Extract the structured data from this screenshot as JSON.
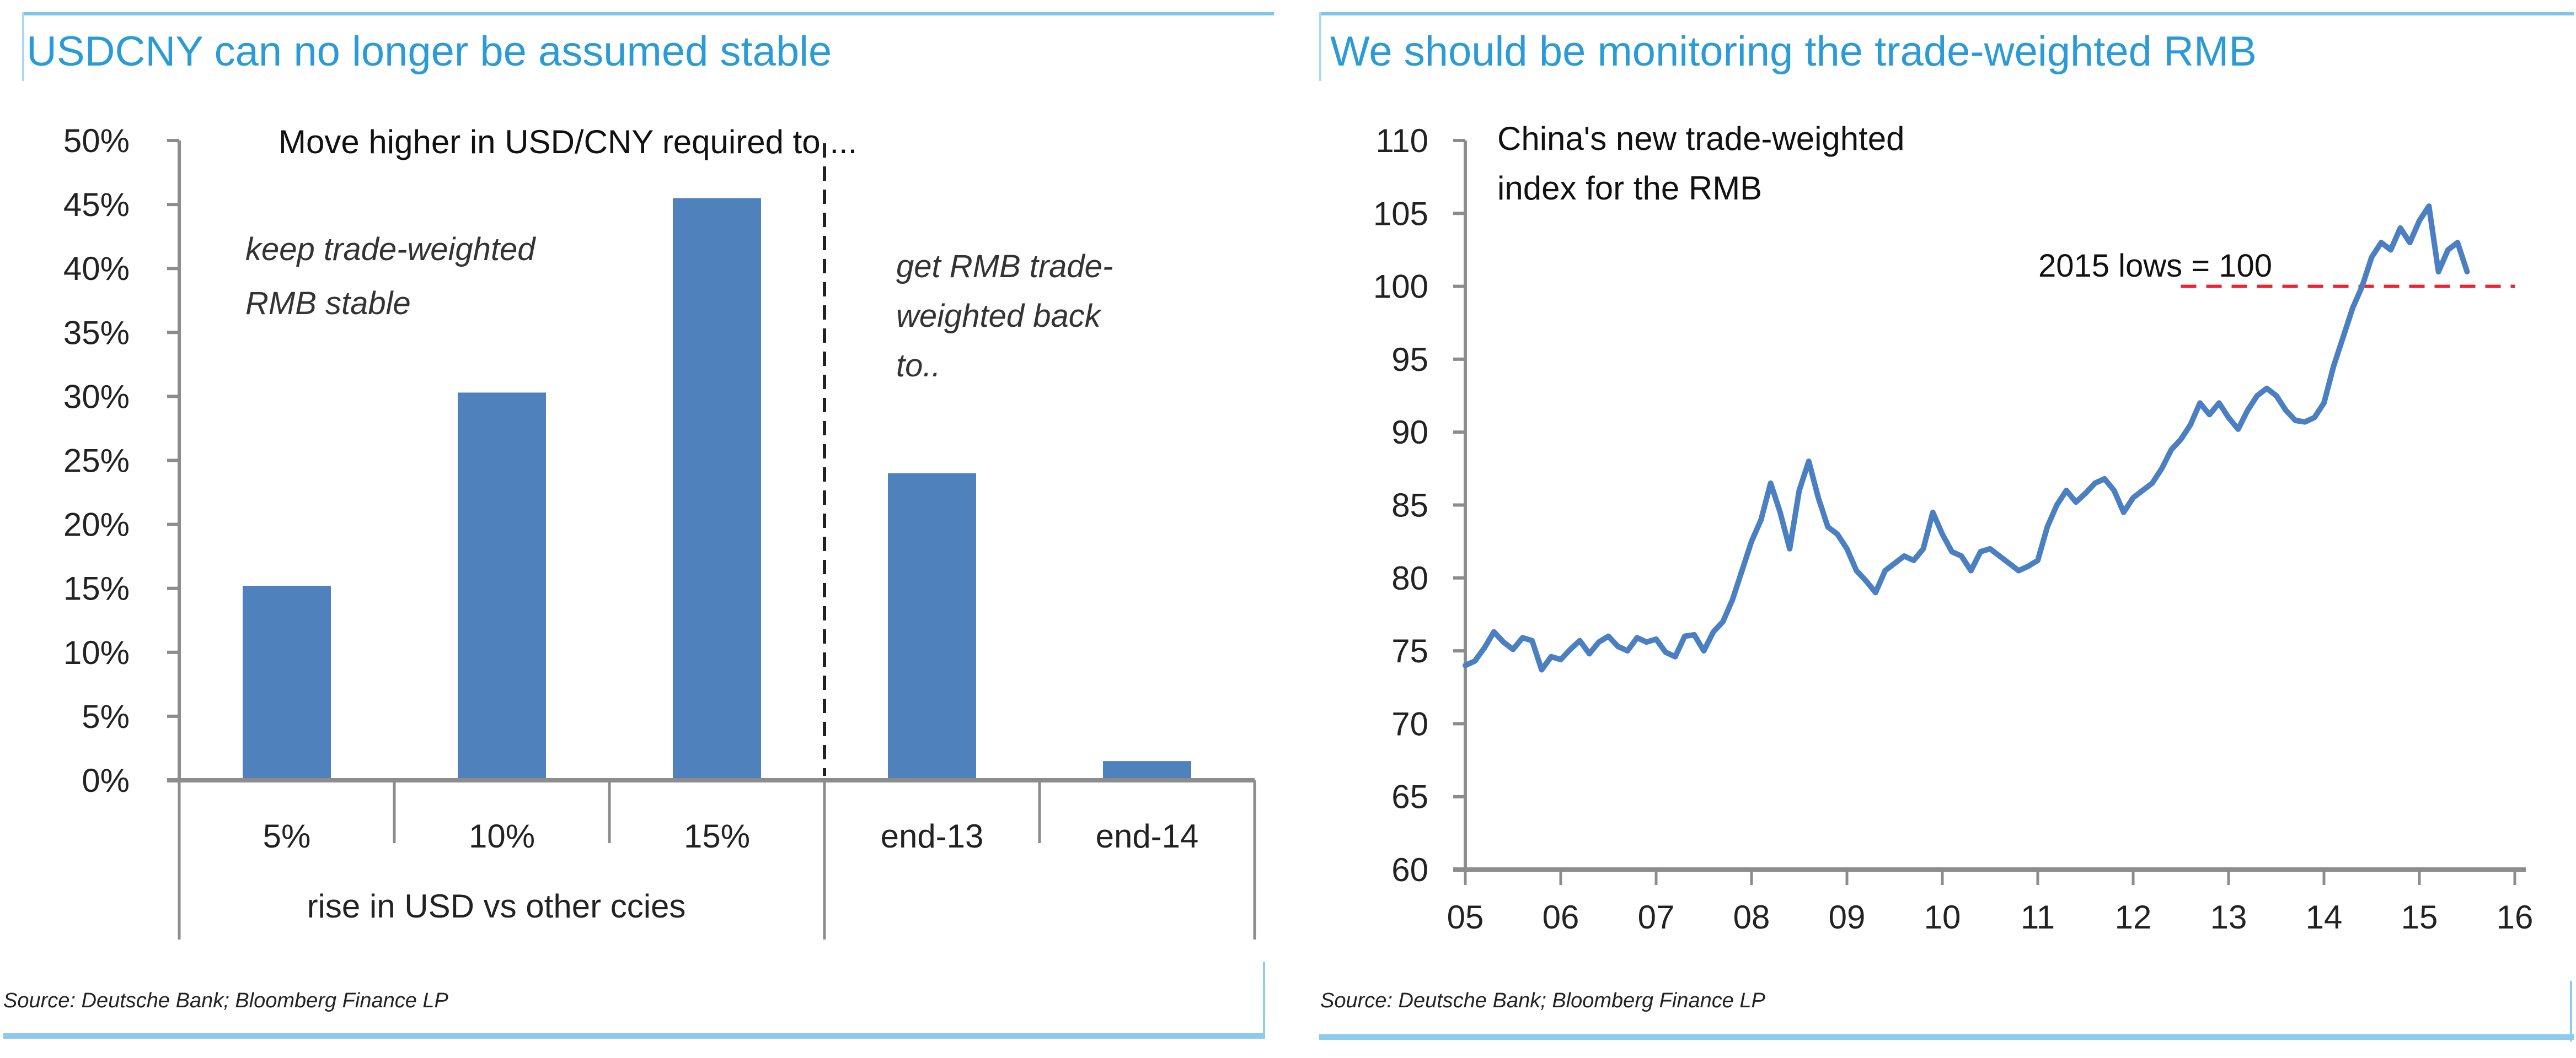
{
  "colors": {
    "title": "#2a9bd6",
    "frame": "#8ccbeb",
    "bar": "#4f81bd",
    "line": "#4a7fc1",
    "axis": "#8c8c8c",
    "reference_line": "#ee2233",
    "text": "#222222"
  },
  "left_panel": {
    "title": "USDCNY can no longer be assumed stable",
    "source": "Source: Deutsche Bank; Bloomberg Finance LP"
  },
  "right_panel": {
    "title": "We should be monitoring the trade-weighted RMB",
    "source": "Source: Deutsche Bank; Bloomberg Finance LP"
  },
  "chart_data": [
    {
      "type": "bar",
      "title": "Move  higher in USD/CNY required to ...",
      "categories": [
        "5%",
        "10%",
        "15%",
        "end-13",
        "end-14"
      ],
      "values": [
        15.2,
        30.3,
        45.5,
        24.0,
        1.5
      ],
      "value_unit": "%",
      "group_labels": [
        {
          "label": "rise in USD vs other ccies",
          "categories": [
            "5%",
            "10%",
            "15%"
          ]
        },
        {
          "label": "",
          "categories": [
            "end-13",
            "end-14"
          ]
        }
      ],
      "annotations": [
        {
          "text_lines": [
            "keep trade-weighted",
            "RMB stable"
          ],
          "group": 0
        },
        {
          "text_lines": [
            "get RMB trade-",
            "weighted back",
            "to.."
          ],
          "group": 1
        }
      ],
      "divider": "dashed line between 15% and end-13",
      "ylim": [
        0,
        50
      ],
      "yticks": [
        0,
        5,
        10,
        15,
        20,
        25,
        30,
        35,
        40,
        45,
        50
      ],
      "ytick_labels": [
        "0%",
        "5%",
        "10%",
        "15%",
        "20%",
        "25%",
        "30%",
        "35%",
        "40%",
        "45%",
        "50%"
      ],
      "xlabel": "",
      "ylabel": "",
      "grid": false,
      "legend": "none"
    },
    {
      "type": "line",
      "title_lines": [
        "China's new trade-weighted",
        "index for the RMB"
      ],
      "series": [
        {
          "name": "China trade-weighted RMB index",
          "x": [
            2005.0,
            2005.1,
            2005.2,
            2005.3,
            2005.4,
            2005.5,
            2005.6,
            2005.7,
            2005.8,
            2005.9,
            2006.0,
            2006.1,
            2006.2,
            2006.3,
            2006.4,
            2006.5,
            2006.6,
            2006.7,
            2006.8,
            2006.9,
            2007.0,
            2007.1,
            2007.2,
            2007.3,
            2007.4,
            2007.5,
            2007.6,
            2007.7,
            2007.8,
            2007.9,
            2008.0,
            2008.1,
            2008.2,
            2008.3,
            2008.4,
            2008.5,
            2008.55,
            2008.6,
            2008.7,
            2008.8,
            2008.9,
            2009.0,
            2009.1,
            2009.2,
            2009.3,
            2009.4,
            2009.5,
            2009.6,
            2009.7,
            2009.8,
            2009.9,
            2010.0,
            2010.1,
            2010.2,
            2010.3,
            2010.4,
            2010.5,
            2010.6,
            2010.7,
            2010.8,
            2010.9,
            2011.0,
            2011.1,
            2011.2,
            2011.3,
            2011.4,
            2011.5,
            2011.6,
            2011.7,
            2011.8,
            2011.9,
            2012.0,
            2012.1,
            2012.2,
            2012.3,
            2012.4,
            2012.5,
            2012.6,
            2012.7,
            2012.8,
            2012.9,
            2013.0,
            2013.1,
            2013.2,
            2013.3,
            2013.4,
            2013.5,
            2013.6,
            2013.7,
            2013.8,
            2013.9,
            2014.0,
            2014.1,
            2014.2,
            2014.3,
            2014.4,
            2014.5,
            2014.6,
            2014.7,
            2014.8,
            2014.9,
            2015.0,
            2015.1,
            2015.2,
            2015.3,
            2015.4,
            2015.5
          ],
          "y": [
            74.0,
            74.3,
            75.2,
            76.3,
            75.6,
            75.1,
            75.9,
            75.7,
            73.7,
            74.6,
            74.4,
            75.1,
            75.7,
            74.8,
            75.6,
            76.0,
            75.3,
            75.0,
            75.9,
            75.6,
            75.8,
            74.9,
            74.6,
            76.0,
            76.1,
            75.0,
            76.3,
            77.0,
            78.5,
            80.5,
            82.5,
            84.0,
            86.5,
            84.5,
            82.0,
            86.0,
            87.0,
            88.0,
            85.5,
            83.5,
            83.0,
            82.0,
            80.5,
            79.8,
            79.0,
            80.5,
            81.0,
            81.5,
            81.2,
            82.0,
            84.5,
            83.0,
            81.8,
            81.5,
            80.5,
            81.8,
            82.0,
            81.5,
            81.0,
            80.5,
            80.8,
            81.2,
            83.5,
            85.0,
            86.0,
            85.2,
            85.8,
            86.5,
            86.8,
            86.0,
            84.5,
            85.5,
            86.0,
            86.5,
            87.5,
            88.8,
            89.5,
            90.5,
            92.0,
            91.2,
            92.0,
            91.0,
            90.2,
            91.5,
            92.5,
            93.0,
            92.5,
            91.5,
            90.8,
            90.7,
            91.0,
            92.0,
            94.5,
            96.5,
            98.5,
            100.0,
            102.0,
            103.0,
            102.5,
            104.0,
            103.0,
            104.5,
            105.5,
            101.0,
            102.5,
            103.0,
            101.0
          ],
          "color": "#4a7fc1"
        }
      ],
      "reference_lines": [
        {
          "y": 100,
          "label": "2015 lows = 100",
          "style": "dashed",
          "color": "#ee2233",
          "x_range": [
            2012.5,
            2016.0
          ]
        }
      ],
      "xlim": [
        2005,
        2016
      ],
      "xticks": [
        2005,
        2006,
        2007,
        2008,
        2009,
        2010,
        2011,
        2012,
        2013,
        2014,
        2015,
        2016
      ],
      "xtick_labels": [
        "05",
        "06",
        "07",
        "08",
        "09",
        "10",
        "11",
        "12",
        "13",
        "14",
        "15",
        "16"
      ],
      "ylim": [
        60,
        110
      ],
      "yticks": [
        60,
        65,
        70,
        75,
        80,
        85,
        90,
        95,
        100,
        105,
        110
      ],
      "ytick_labels": [
        "60",
        "65",
        "70",
        "75",
        "80",
        "85",
        "90",
        "95",
        "100",
        "105",
        "110"
      ],
      "xlabel": "",
      "ylabel": "",
      "grid": false,
      "legend": "none"
    }
  ]
}
